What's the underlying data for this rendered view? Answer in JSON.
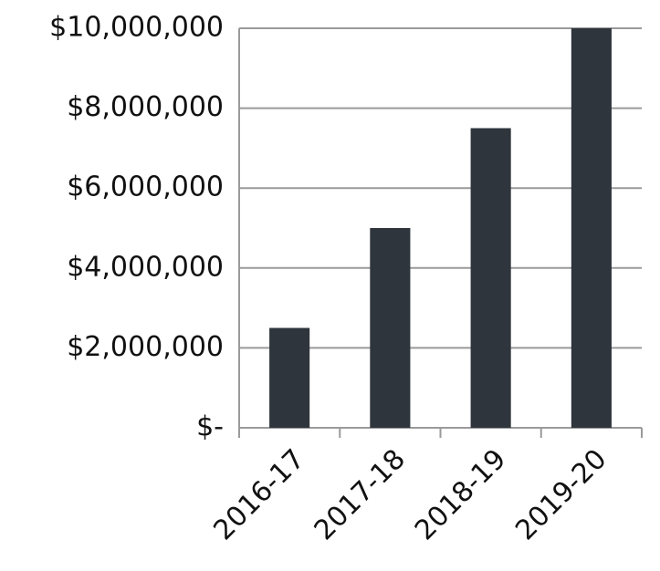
{
  "chart_data": {
    "type": "bar",
    "categories": [
      "2016-17",
      "2017-18",
      "2018-19",
      "2019-20"
    ],
    "values": [
      2500000,
      5000000,
      7500000,
      10000000
    ],
    "color": "#2f353c",
    "ylim": [
      0,
      10000000
    ],
    "yticks": [
      {
        "value": 0,
        "label": "$-"
      },
      {
        "value": 2000000,
        "label": "$2,000,000"
      },
      {
        "value": 4000000,
        "label": "$4,000,000"
      },
      {
        "value": 6000000,
        "label": "$6,000,000"
      },
      {
        "value": 8000000,
        "label": "$8,000,000"
      },
      {
        "value": 10000000,
        "label": "$10,000,000"
      }
    ],
    "grid": true
  }
}
